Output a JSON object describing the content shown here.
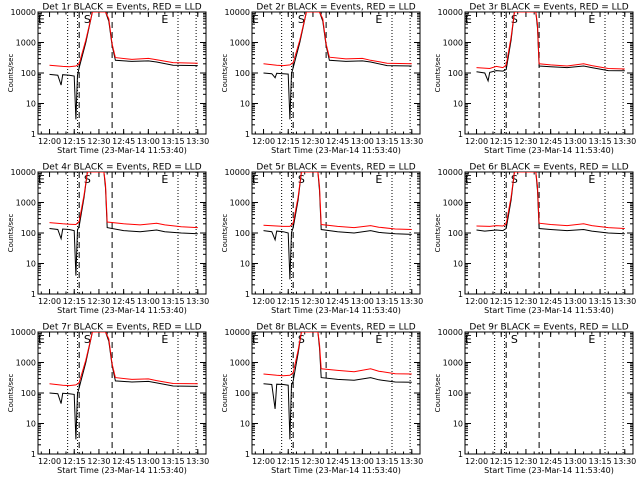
{
  "chart_data": {
    "type": "line",
    "layout": "3x3 grid",
    "xlabel": "Start Time (23-Mar-14 11:53:40)",
    "ylabel": "Counts/sec",
    "x_ticks": [
      "12:00",
      "12:15",
      "12:30",
      "12:45",
      "13:00",
      "13:15",
      "13:30"
    ],
    "y_scale": "log",
    "ylim": [
      1,
      10000
    ],
    "y_ticks": [
      "1",
      "10",
      "100",
      "1000",
      "10000"
    ],
    "markers": {
      "dotted": [
        "12:11",
        "12:17",
        "13:18",
        "13:29"
      ],
      "dashed": [
        "12:18",
        "12:38"
      ],
      "letters": [
        {
          "text": "E",
          "x": "11:55"
        },
        {
          "text": "S",
          "x": "12:23"
        },
        {
          "text": "E",
          "x": "13:10"
        }
      ]
    },
    "series_colors": {
      "events": "#000000",
      "lld": "#ff0000"
    },
    "panels": [
      {
        "title": "Det 1r BLACK = Events, RED = LLD",
        "events": [
          [
            "12:00",
            90
          ],
          [
            "12:05",
            85
          ],
          [
            "12:07",
            40
          ],
          [
            "12:08",
            88
          ],
          [
            "12:12",
            85
          ],
          [
            "12:15",
            80
          ],
          [
            "12:16",
            3
          ],
          [
            "12:17",
            85
          ],
          [
            "12:18",
            150
          ],
          [
            "12:22",
            1000
          ],
          [
            "12:26",
            10000
          ],
          [
            "12:34",
            10000
          ],
          [
            "12:36",
            5000
          ],
          [
            "12:38",
            800
          ],
          [
            "12:40",
            260
          ],
          [
            "12:50",
            240
          ],
          [
            "13:00",
            250
          ],
          [
            "13:05",
            230
          ],
          [
            "13:15",
            180
          ],
          [
            "13:30",
            175
          ]
        ],
        "lld": [
          [
            "12:00",
            180
          ],
          [
            "12:08",
            165
          ],
          [
            "12:12",
            160
          ],
          [
            "12:16",
            170
          ],
          [
            "12:18",
            200
          ],
          [
            "12:22",
            1200
          ],
          [
            "12:26",
            10000
          ],
          [
            "12:34",
            10000
          ],
          [
            "12:36",
            6000
          ],
          [
            "12:38",
            900
          ],
          [
            "12:40",
            320
          ],
          [
            "12:50",
            280
          ],
          [
            "13:00",
            300
          ],
          [
            "13:05",
            270
          ],
          [
            "13:15",
            220
          ],
          [
            "13:30",
            210
          ]
        ]
      },
      {
        "title": "Det 2r BLACK = Events, RED = LLD",
        "events": [
          [
            "12:00",
            100
          ],
          [
            "12:05",
            95
          ],
          [
            "12:07",
            70
          ],
          [
            "12:08",
            98
          ],
          [
            "12:12",
            95
          ],
          [
            "12:15",
            92
          ],
          [
            "12:16",
            3
          ],
          [
            "12:17",
            95
          ],
          [
            "12:18",
            150
          ],
          [
            "12:22",
            1000
          ],
          [
            "12:26",
            10000
          ],
          [
            "12:34",
            10000
          ],
          [
            "12:36",
            5000
          ],
          [
            "12:38",
            800
          ],
          [
            "12:40",
            260
          ],
          [
            "12:50",
            240
          ],
          [
            "13:00",
            250
          ],
          [
            "13:05",
            230
          ],
          [
            "13:15",
            175
          ],
          [
            "13:30",
            170
          ]
        ],
        "lld": [
          [
            "12:00",
            200
          ],
          [
            "12:08",
            180
          ],
          [
            "12:12",
            175
          ],
          [
            "12:16",
            185
          ],
          [
            "12:18",
            220
          ],
          [
            "12:22",
            1200
          ],
          [
            "12:26",
            10000
          ],
          [
            "12:34",
            10000
          ],
          [
            "12:36",
            6000
          ],
          [
            "12:38",
            900
          ],
          [
            "12:40",
            330
          ],
          [
            "12:50",
            290
          ],
          [
            "13:00",
            300
          ],
          [
            "13:05",
            260
          ],
          [
            "13:15",
            210
          ],
          [
            "13:30",
            200
          ]
        ]
      },
      {
        "title": "Det 3r BLACK = Events, RED = LLD",
        "events": [
          [
            "12:00",
            110
          ],
          [
            "12:05",
            100
          ],
          [
            "12:07",
            55
          ],
          [
            "12:08",
            105
          ],
          [
            "12:12",
            120
          ],
          [
            "12:16",
            115
          ],
          [
            "12:18",
            130
          ],
          [
            "12:21",
            1200
          ],
          [
            "12:23",
            10000
          ],
          [
            "12:36",
            10000
          ],
          [
            "12:37",
            3000
          ],
          [
            "12:38",
            170
          ],
          [
            "12:45",
            160
          ],
          [
            "12:55",
            150
          ],
          [
            "13:05",
            170
          ],
          [
            "13:10",
            150
          ],
          [
            "13:20",
            120
          ],
          [
            "13:30",
            118
          ]
        ],
        "lld": [
          [
            "12:00",
            150
          ],
          [
            "12:08",
            140
          ],
          [
            "12:12",
            165
          ],
          [
            "12:16",
            150
          ],
          [
            "12:18",
            180
          ],
          [
            "12:21",
            1500
          ],
          [
            "12:23",
            10000
          ],
          [
            "12:36",
            10000
          ],
          [
            "12:37",
            4000
          ],
          [
            "12:38",
            200
          ],
          [
            "12:45",
            185
          ],
          [
            "12:55",
            170
          ],
          [
            "13:05",
            200
          ],
          [
            "13:10",
            175
          ],
          [
            "13:20",
            140
          ],
          [
            "13:30",
            135
          ]
        ]
      },
      {
        "title": "Det 4r BLACK = Events, RED = LLD",
        "events": [
          [
            "12:00",
            140
          ],
          [
            "12:05",
            130
          ],
          [
            "12:07",
            65
          ],
          [
            "12:08",
            135
          ],
          [
            "12:12",
            130
          ],
          [
            "12:15",
            120
          ],
          [
            "12:16",
            4
          ],
          [
            "12:17",
            125
          ],
          [
            "12:18",
            170
          ],
          [
            "12:21",
            1500
          ],
          [
            "12:23",
            10000
          ],
          [
            "12:33",
            10000
          ],
          [
            "12:34",
            3000
          ],
          [
            "12:35",
            150
          ],
          [
            "12:45",
            120
          ],
          [
            "12:55",
            110
          ],
          [
            "13:05",
            125
          ],
          [
            "13:10",
            110
          ],
          [
            "13:20",
            100
          ],
          [
            "13:30",
            95
          ]
        ],
        "lld": [
          [
            "12:00",
            220
          ],
          [
            "12:08",
            200
          ],
          [
            "12:12",
            195
          ],
          [
            "12:16",
            190
          ],
          [
            "12:18",
            240
          ],
          [
            "12:21",
            1800
          ],
          [
            "12:23",
            10000
          ],
          [
            "12:33",
            10000
          ],
          [
            "12:34",
            4000
          ],
          [
            "12:35",
            230
          ],
          [
            "12:45",
            200
          ],
          [
            "12:55",
            185
          ],
          [
            "13:05",
            210
          ],
          [
            "13:10",
            185
          ],
          [
            "13:20",
            160
          ],
          [
            "13:30",
            150
          ]
        ]
      },
      {
        "title": "Det 5r BLACK = Events, RED = LLD",
        "events": [
          [
            "12:00",
            120
          ],
          [
            "12:05",
            110
          ],
          [
            "12:07",
            60
          ],
          [
            "12:08",
            115
          ],
          [
            "12:12",
            110
          ],
          [
            "12:15",
            100
          ],
          [
            "12:16",
            3
          ],
          [
            "12:17",
            105
          ],
          [
            "12:18",
            150
          ],
          [
            "12:21",
            1200
          ],
          [
            "12:23",
            10000
          ],
          [
            "12:33",
            10000
          ],
          [
            "12:34",
            2500
          ],
          [
            "12:35",
            130
          ],
          [
            "12:45",
            110
          ],
          [
            "12:55",
            100
          ],
          [
            "13:05",
            120
          ],
          [
            "13:10",
            105
          ],
          [
            "13:20",
            95
          ],
          [
            "13:30",
            90
          ]
        ],
        "lld": [
          [
            "12:00",
            180
          ],
          [
            "12:08",
            170
          ],
          [
            "12:12",
            165
          ],
          [
            "12:16",
            165
          ],
          [
            "12:18",
            210
          ],
          [
            "12:21",
            1500
          ],
          [
            "12:23",
            10000
          ],
          [
            "12:33",
            10000
          ],
          [
            "12:34",
            3500
          ],
          [
            "12:35",
            190
          ],
          [
            "12:45",
            165
          ],
          [
            "12:55",
            150
          ],
          [
            "13:05",
            175
          ],
          [
            "13:10",
            155
          ],
          [
            "13:20",
            135
          ],
          [
            "13:30",
            130
          ]
        ]
      },
      {
        "title": "Det 6r BLACK = Events, RED = LLD",
        "events": [
          [
            "12:00",
            125
          ],
          [
            "12:05",
            115
          ],
          [
            "12:08",
            120
          ],
          [
            "12:12",
            125
          ],
          [
            "12:16",
            120
          ],
          [
            "12:18",
            140
          ],
          [
            "12:21",
            1200
          ],
          [
            "12:23",
            10000
          ],
          [
            "12:36",
            10000
          ],
          [
            "12:37",
            2500
          ],
          [
            "12:38",
            140
          ],
          [
            "12:45",
            130
          ],
          [
            "12:55",
            120
          ],
          [
            "13:05",
            130
          ],
          [
            "13:10",
            115
          ],
          [
            "13:20",
            100
          ],
          [
            "13:30",
            95
          ]
        ],
        "lld": [
          [
            "12:00",
            170
          ],
          [
            "12:08",
            165
          ],
          [
            "12:12",
            175
          ],
          [
            "12:16",
            170
          ],
          [
            "12:18",
            200
          ],
          [
            "12:21",
            1500
          ],
          [
            "12:23",
            10000
          ],
          [
            "12:36",
            10000
          ],
          [
            "12:37",
            3500
          ],
          [
            "12:38",
            210
          ],
          [
            "12:45",
            190
          ],
          [
            "12:55",
            175
          ],
          [
            "13:05",
            200
          ],
          [
            "13:10",
            175
          ],
          [
            "13:20",
            150
          ],
          [
            "13:30",
            140
          ]
        ]
      },
      {
        "title": "Det 7r BLACK = Events, RED = LLD",
        "events": [
          [
            "12:00",
            100
          ],
          [
            "12:05",
            95
          ],
          [
            "12:07",
            45
          ],
          [
            "12:08",
            98
          ],
          [
            "12:12",
            95
          ],
          [
            "12:15",
            90
          ],
          [
            "12:16",
            3
          ],
          [
            "12:17",
            95
          ],
          [
            "12:18",
            150
          ],
          [
            "12:22",
            1000
          ],
          [
            "12:26",
            10000
          ],
          [
            "12:34",
            10000
          ],
          [
            "12:36",
            5000
          ],
          [
            "12:38",
            800
          ],
          [
            "12:40",
            250
          ],
          [
            "12:50",
            230
          ],
          [
            "13:00",
            240
          ],
          [
            "13:05",
            215
          ],
          [
            "13:15",
            170
          ],
          [
            "13:30",
            165
          ]
        ],
        "lld": [
          [
            "12:00",
            200
          ],
          [
            "12:08",
            180
          ],
          [
            "12:12",
            175
          ],
          [
            "12:16",
            185
          ],
          [
            "12:18",
            220
          ],
          [
            "12:22",
            1200
          ],
          [
            "12:26",
            10000
          ],
          [
            "12:34",
            10000
          ],
          [
            "12:36",
            6000
          ],
          [
            "12:38",
            900
          ],
          [
            "12:40",
            320
          ],
          [
            "12:50",
            280
          ],
          [
            "13:00",
            290
          ],
          [
            "13:05",
            255
          ],
          [
            "13:15",
            205
          ],
          [
            "13:30",
            200
          ]
        ]
      },
      {
        "title": "Det 8r BLACK = Events, RED = LLD",
        "events": [
          [
            "12:00",
            200
          ],
          [
            "12:05",
            190
          ],
          [
            "12:07",
            30
          ],
          [
            "12:08",
            195
          ],
          [
            "12:12",
            190
          ],
          [
            "12:15",
            180
          ],
          [
            "12:16",
            3
          ],
          [
            "12:17",
            185
          ],
          [
            "12:18",
            250
          ],
          [
            "12:21",
            2000
          ],
          [
            "12:23",
            10000
          ],
          [
            "12:33",
            10000
          ],
          [
            "12:34",
            3000
          ],
          [
            "12:35",
            320
          ],
          [
            "12:45",
            280
          ],
          [
            "12:55",
            260
          ],
          [
            "13:05",
            320
          ],
          [
            "13:10",
            270
          ],
          [
            "13:20",
            230
          ],
          [
            "13:30",
            225
          ]
        ],
        "lld": [
          [
            "12:00",
            420
          ],
          [
            "12:08",
            380
          ],
          [
            "12:12",
            370
          ],
          [
            "12:16",
            380
          ],
          [
            "12:18",
            460
          ],
          [
            "12:21",
            2500
          ],
          [
            "12:23",
            10000
          ],
          [
            "12:33",
            10000
          ],
          [
            "12:34",
            4000
          ],
          [
            "12:35",
            620
          ],
          [
            "12:45",
            550
          ],
          [
            "12:55",
            500
          ],
          [
            "13:05",
            620
          ],
          [
            "13:10",
            520
          ],
          [
            "13:20",
            430
          ],
          [
            "13:30",
            420
          ]
        ]
      },
      {
        "title": "Det 9r BLACK = Events, RED = LLD",
        "events": [],
        "lld": []
      }
    ]
  }
}
